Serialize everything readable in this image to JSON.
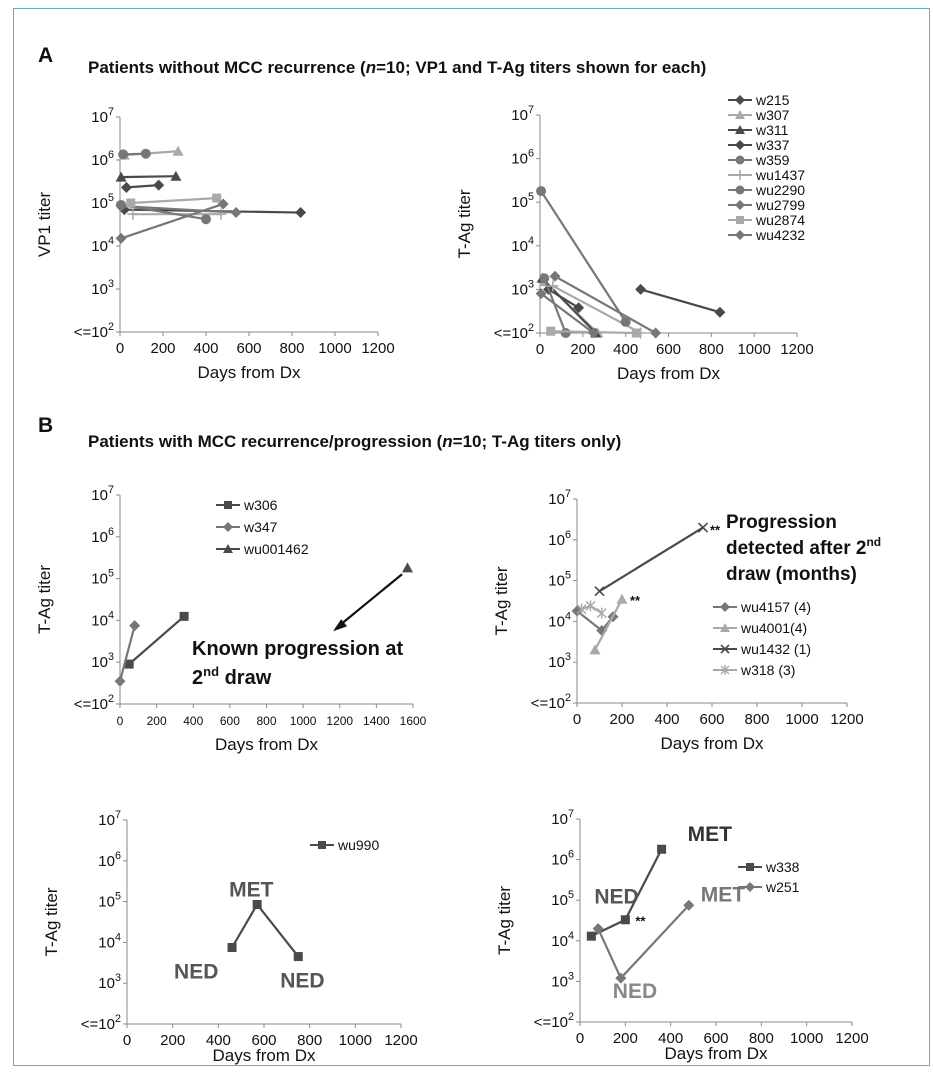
{
  "panel_a": {
    "letter": "A",
    "title_pre": "Patients without MCC recurrence (",
    "title_n": "n",
    "title_post": "=10; VP1 and T-Ag titers shown for each)"
  },
  "panel_b": {
    "letter": "B",
    "title_pre": "Patients with MCC recurrence/progression (",
    "title_n": "n",
    "title_post": "=10; T-Ag  titers only)"
  },
  "colors": {
    "dark": "#4a4a4a",
    "mid": "#777777",
    "light": "#a9a9a9",
    "axis": "#8a8a8a"
  },
  "chart_data": [
    {
      "id": "a_vp1",
      "type": "line",
      "xlabel": "Days from Dx",
      "ylabel": "VP1 titer",
      "xlim": [
        0,
        1200
      ],
      "xticks": [
        "0",
        "200",
        "400",
        "600",
        "800",
        "1000",
        "1200"
      ],
      "yscale": "log",
      "ylim_exp": [
        2,
        7
      ],
      "ytick_labels": [
        "<=10²",
        "10³",
        "10⁴",
        "10⁵",
        "10⁶",
        "10⁷"
      ],
      "series": [
        {
          "name": "w215",
          "marker": "diamond",
          "shade": "dark",
          "points": [
            [
              20,
              70000
            ],
            [
              840,
              60000
            ]
          ]
        },
        {
          "name": "w307",
          "marker": "triangle",
          "shade": "light",
          "points": [
            [
              20,
              1300000
            ],
            [
              270,
              1600000
            ]
          ]
        },
        {
          "name": "w311",
          "marker": "triangle",
          "shade": "dark",
          "points": [
            [
              5,
              400000
            ],
            [
              260,
              420000
            ]
          ]
        },
        {
          "name": "w337",
          "marker": "diamond",
          "shade": "dark",
          "points": [
            [
              30,
              230000
            ],
            [
              180,
              260000
            ]
          ]
        },
        {
          "name": "w359",
          "marker": "circle",
          "shade": "mid",
          "points": [
            [
              15,
              1350000
            ],
            [
              120,
              1400000
            ]
          ]
        },
        {
          "name": "wu1437",
          "marker": "plus",
          "shade": "light",
          "points": [
            [
              60,
              55000
            ],
            [
              470,
              55000
            ]
          ]
        },
        {
          "name": "wu2290",
          "marker": "circle",
          "shade": "mid",
          "points": [
            [
              5,
              90000
            ],
            [
              400,
              42000
            ]
          ]
        },
        {
          "name": "wu2799",
          "marker": "diamond",
          "shade": "mid",
          "points": [
            [
              5,
              85000
            ],
            [
              540,
              60000
            ]
          ]
        },
        {
          "name": "wu2874",
          "marker": "square",
          "shade": "light",
          "points": [
            [
              50,
              100000
            ],
            [
              450,
              130000
            ]
          ]
        },
        {
          "name": "wu4232",
          "marker": "diamond",
          "shade": "mid",
          "points": [
            [
              5,
              15000
            ],
            [
              480,
              95000
            ]
          ]
        }
      ]
    },
    {
      "id": "a_tag",
      "type": "line",
      "xlabel": "Days from Dx",
      "ylabel": "T-Ag titer",
      "xlim": [
        0,
        1200
      ],
      "xticks": [
        "0",
        "200",
        "400",
        "600",
        "800",
        "1000",
        "1200"
      ],
      "yscale": "log",
      "ylim_exp": [
        2,
        7
      ],
      "ytick_labels": [
        "<=10²",
        "10³",
        "10⁴",
        "10⁵",
        "10⁶",
        "10⁷"
      ],
      "legend": [
        "w215",
        "w307",
        "w311",
        "w337",
        "w359",
        "wu1437",
        "wu2290",
        "wu2799",
        "wu2874",
        "wu4232"
      ],
      "legend_markers": [
        "diamond",
        "triangle",
        "triangle",
        "diamond",
        "circle",
        "plus",
        "circle",
        "diamond",
        "square",
        "diamond"
      ],
      "legend_shades": [
        "dark",
        "light",
        "dark",
        "dark",
        "mid",
        "light",
        "mid",
        "mid",
        "light",
        "mid"
      ],
      "series": [
        {
          "name": "w215",
          "marker": "diamond",
          "shade": "dark",
          "points": [
            [
              470,
              1000
            ],
            [
              840,
              300
            ]
          ]
        },
        {
          "name": "w307",
          "marker": "triangle",
          "shade": "light",
          "points": [
            [
              20,
              1500
            ],
            [
              270,
              100
            ]
          ]
        },
        {
          "name": "w311",
          "marker": "triangle",
          "shade": "dark",
          "points": [
            [
              10,
              1800
            ],
            [
              260,
              100
            ]
          ]
        },
        {
          "name": "w337",
          "marker": "diamond",
          "shade": "dark",
          "points": [
            [
              40,
              1000
            ],
            [
              180,
              380
            ]
          ]
        },
        {
          "name": "w359",
          "marker": "circle",
          "shade": "mid",
          "points": [
            [
              20,
              1800
            ],
            [
              120,
              100
            ]
          ]
        },
        {
          "name": "wu1437",
          "marker": "plus",
          "shade": "light",
          "points": [
            [
              60,
              1200
            ],
            [
              470,
              100
            ]
          ]
        },
        {
          "name": "wu2290",
          "marker": "circle",
          "shade": "mid",
          "points": [
            [
              5,
              180000
            ],
            [
              400,
              180
            ]
          ]
        },
        {
          "name": "wu2799",
          "marker": "diamond",
          "shade": "mid",
          "points": [
            [
              70,
              2000
            ],
            [
              540,
              100
            ]
          ]
        },
        {
          "name": "wu2874",
          "marker": "square",
          "shade": "light",
          "points": [
            [
              50,
              110
            ],
            [
              450,
              100
            ]
          ]
        },
        {
          "name": "wu4232",
          "marker": "diamond",
          "shade": "mid",
          "points": [
            [
              5,
              800
            ],
            [
              250,
              100
            ]
          ]
        }
      ]
    },
    {
      "id": "b_tl",
      "type": "line",
      "xlabel": "Days from Dx",
      "ylabel": "T-Ag titer",
      "xlim": [
        0,
        1600
      ],
      "xticks": [
        "0",
        "200",
        "400",
        "600",
        "800",
        "1000",
        "1200",
        "1400",
        "1600"
      ],
      "yscale": "log",
      "ylim_exp": [
        2,
        7
      ],
      "ytick_labels": [
        "<=10²",
        "10³",
        "10⁴",
        "10⁵",
        "10⁶",
        "10⁷"
      ],
      "legend": [
        "w306",
        "w347",
        "wu001462"
      ],
      "legend_markers": [
        "square",
        "diamond",
        "triangle"
      ],
      "legend_shades": [
        "dark",
        "mid",
        "dark"
      ],
      "series": [
        {
          "name": "w306",
          "marker": "square",
          "shade": "dark",
          "points": [
            [
              50,
              900
            ],
            [
              350,
              12500
            ]
          ]
        },
        {
          "name": "w347",
          "marker": "diamond",
          "shade": "mid",
          "points": [
            [
              0,
              350
            ],
            [
              80,
              7500
            ]
          ]
        },
        {
          "name": "wu001462",
          "marker": "triangle",
          "shade": "dark",
          "points": [
            [
              1570,
              180000
            ]
          ]
        }
      ],
      "annotation": {
        "line1": "Known progression at",
        "line2_pre": "2",
        "line2_sup": "nd",
        "line2_post": " draw"
      }
    },
    {
      "id": "b_tr",
      "type": "line",
      "xlabel": "Days from Dx",
      "ylabel": "T-Ag titer",
      "xlim": [
        0,
        1200
      ],
      "xticks": [
        "0",
        "200",
        "400",
        "600",
        "800",
        "1000",
        "1200"
      ],
      "yscale": "log",
      "ylim_exp": [
        2,
        7
      ],
      "ytick_labels": [
        "<=10²",
        "10³",
        "10⁴",
        "10⁵",
        "10⁶",
        "10⁷"
      ],
      "legend": [
        "wu4157 (4)",
        "wu4001(4)",
        "wu1432 (1)",
        "w318 (3)"
      ],
      "legend_markers": [
        "diamond",
        "triangle",
        "x",
        "star"
      ],
      "legend_shades": [
        "mid",
        "light",
        "dark",
        "light"
      ],
      "series": [
        {
          "name": "wu4157 (4)",
          "marker": "diamond",
          "shade": "mid",
          "points": [
            [
              0,
              18000
            ],
            [
              110,
              6000
            ],
            [
              160,
              13000
            ]
          ]
        },
        {
          "name": "wu4001(4)",
          "marker": "triangle",
          "shade": "light",
          "points": [
            [
              80,
              2000
            ],
            [
              200,
              35000
            ]
          ]
        },
        {
          "name": "wu1432 (1)",
          "marker": "x",
          "shade": "dark",
          "points": [
            [
              100,
              55000
            ],
            [
              560,
              2000000
            ]
          ]
        },
        {
          "name": "w318 (3)",
          "marker": "star",
          "shade": "light",
          "points": [
            [
              20,
              20000
            ],
            [
              60,
              24000
            ],
            [
              110,
              16000
            ]
          ]
        }
      ],
      "annotation": {
        "line1": "Progression",
        "line2_pre": "detected after 2",
        "line2_sup": "nd",
        "line3": "draw (months)"
      },
      "stars": "**"
    },
    {
      "id": "b_bl",
      "type": "line",
      "xlabel": "Days from Dx",
      "ylabel": "T-Ag titer",
      "xlim": [
        0,
        1200
      ],
      "xticks": [
        "0",
        "200",
        "400",
        "600",
        "800",
        "1000",
        "1200"
      ],
      "yscale": "log",
      "ylim_exp": [
        2,
        7
      ],
      "ytick_labels": [
        "<=10²",
        "10³",
        "10⁴",
        "10⁵",
        "10⁶",
        "10⁷"
      ],
      "legend": [
        "wu990"
      ],
      "legend_markers": [
        "square"
      ],
      "legend_shades": [
        "dark"
      ],
      "series": [
        {
          "name": "wu990",
          "marker": "square",
          "shade": "dark",
          "points": [
            [
              460,
              7500
            ],
            [
              570,
              85000
            ],
            [
              750,
              4500
            ]
          ]
        }
      ],
      "labels": {
        "met": "MET",
        "ned1": "NED",
        "ned2": "NED"
      }
    },
    {
      "id": "b_br",
      "type": "line",
      "xlabel": "Days from Dx",
      "ylabel": "T-Ag titer",
      "xlim": [
        0,
        1200
      ],
      "xticks": [
        "0",
        "200",
        "400",
        "600",
        "800",
        "1000",
        "1200"
      ],
      "yscale": "log",
      "ylim_exp": [
        2,
        7
      ],
      "ytick_labels": [
        "<=10²",
        "10³",
        "10⁴",
        "10⁵",
        "10⁶",
        "10⁷"
      ],
      "legend": [
        "w338",
        "w251"
      ],
      "legend_markers": [
        "square",
        "diamond"
      ],
      "legend_shades": [
        "dark",
        "mid"
      ],
      "series": [
        {
          "name": "w338",
          "marker": "square",
          "shade": "dark",
          "points": [
            [
              50,
              13000
            ],
            [
              200,
              33000
            ],
            [
              360,
              1800000
            ]
          ]
        },
        {
          "name": "w251",
          "marker": "diamond",
          "shade": "mid",
          "points": [
            [
              80,
              20000
            ],
            [
              180,
              1200
            ],
            [
              480,
              75000
            ]
          ]
        }
      ],
      "labels": {
        "met1": "MET",
        "ned1": "NED",
        "met2": "MET",
        "ned2": "NED"
      },
      "stars": "**"
    }
  ]
}
